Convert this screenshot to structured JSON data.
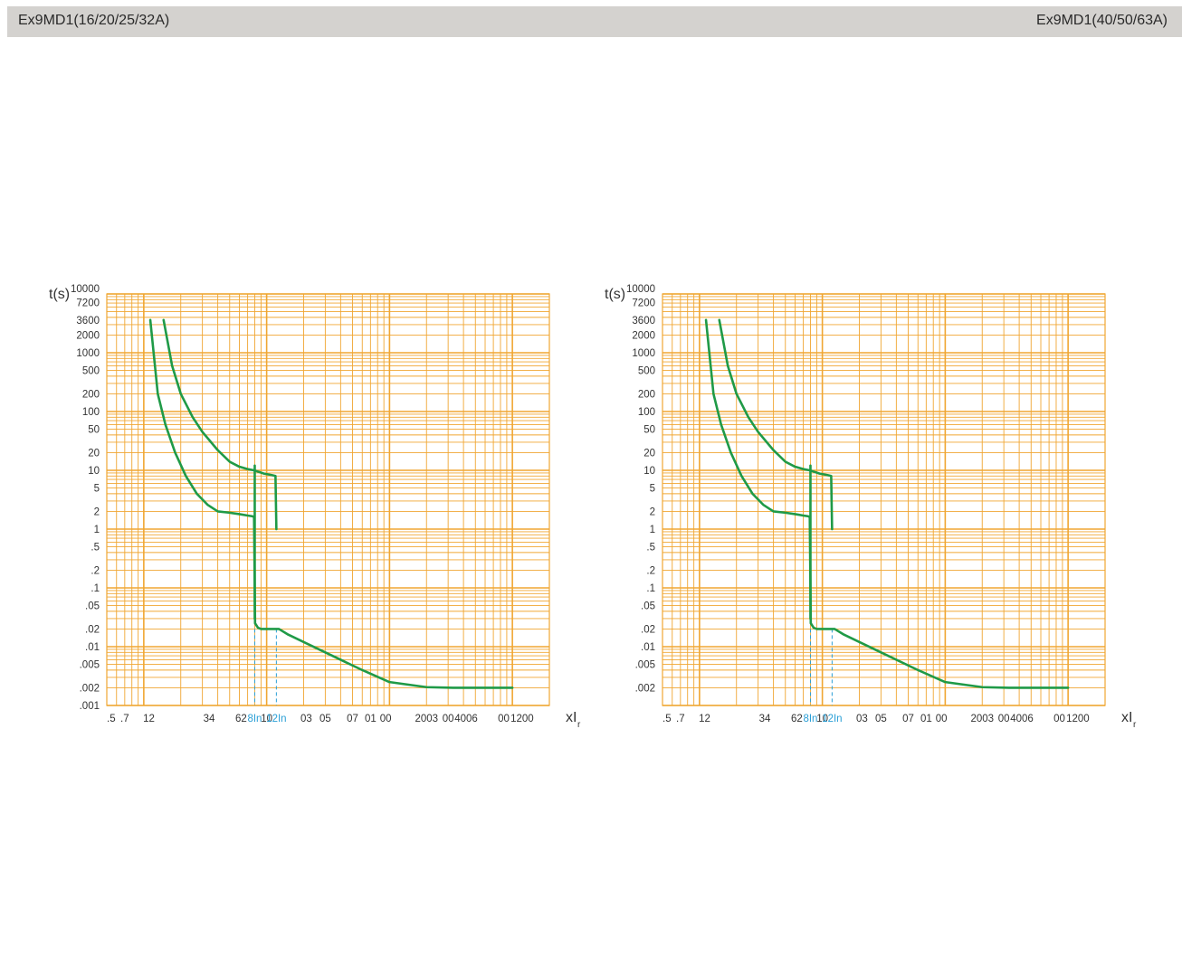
{
  "header": {
    "left_title": "Ex9MD1(16/20/25/32A)",
    "right_title": "Ex9MD1(40/50/63A)"
  },
  "colors": {
    "grid": "#f0a632",
    "curve": "#1f9a47",
    "marker": "#2a9fd6",
    "header_bg": "#d4d2cf"
  },
  "chart_data": [
    {
      "type": "line",
      "title": "",
      "xlabel": "xI",
      "xlabel_sub": "r",
      "ylabel": "t(s)",
      "x_scale": "log",
      "y_scale": "log",
      "xlim": [
        0.5,
        2000
      ],
      "ylim": [
        0.001,
        10000
      ],
      "grid": true,
      "y_ticks": [
        "10000",
        "7200",
        "3600",
        "2000",
        "1000",
        "500",
        "200",
        "100",
        "50",
        "20",
        "10",
        "5",
        "2",
        "1",
        ".5",
        ".2",
        ".1",
        ".05",
        ".02",
        ".01",
        ".005",
        ".002",
        ".001"
      ],
      "x_ticks": [
        ".5",
        ".7",
        "12",
        "34",
        "62",
        "8In",
        "10",
        "12In",
        "03",
        "05",
        "07",
        "01",
        "00",
        "2003",
        "00",
        "4006",
        "00",
        "1200"
      ],
      "x_ticks_highlight": [
        "8In",
        "12In"
      ],
      "markers": [
        8,
        12
      ],
      "series": [
        {
          "x": [
            1.13,
            1.3,
            1.5,
            1.8,
            2.2,
            2.7,
            3.3,
            4,
            5,
            6,
            7,
            7.7,
            7.9,
            8.05,
            8.5,
            9,
            10,
            11.6,
            11.85,
            12.05,
            12.6,
            15,
            30,
            60,
            100,
            200,
            330,
            400,
            1000
          ],
          "y": [
            3600,
            200,
            60,
            20,
            8,
            4,
            2.6,
            2,
            1.9,
            1.8,
            1.7,
            1.65,
            1.6,
            0.025,
            0.021,
            0.02,
            0.02,
            0.02,
            0.02,
            0.02,
            0.02,
            0.016,
            0.008,
            0.004,
            0.0025,
            0.00205,
            0.002,
            0.002,
            0.002
          ]
        },
        {
          "x": [
            1.45,
            1.7,
            2,
            2.5,
            3,
            4,
            5,
            6,
            7,
            7.9,
            8.5,
            9.5,
            11,
            11.8,
            12
          ],
          "y": [
            3600,
            600,
            200,
            80,
            45,
            22,
            14,
            11.5,
            10.5,
            10,
            9.5,
            8.8,
            8.3,
            8,
            1
          ]
        },
        {
          "x": [
            8,
            8
          ],
          "y": [
            12,
            0.03
          ]
        }
      ]
    },
    {
      "type": "line",
      "title": "",
      "xlabel": "xI",
      "xlabel_sub": "r",
      "ylabel": "t(s)",
      "x_scale": "log",
      "y_scale": "log",
      "xlim": [
        0.5,
        2000
      ],
      "ylim": [
        0.001,
        10000
      ],
      "grid": true,
      "y_ticks": [
        "10000",
        "7200",
        "3600",
        "2000",
        "1000",
        "500",
        "200",
        "100",
        "50",
        "20",
        "10",
        "5",
        "2",
        "1",
        ".5",
        ".2",
        ".1",
        ".05",
        ".02",
        ".01",
        ".005",
        ".002"
      ],
      "x_ticks": [
        ".5",
        ".7",
        "12",
        "34",
        "62",
        "8In",
        "10",
        "12In",
        "03",
        "05",
        "07",
        "01",
        "00",
        "2003",
        "00",
        "4006",
        "00",
        "1200"
      ],
      "x_ticks_highlight": [
        "8In",
        "12In"
      ],
      "markers": [
        8,
        12
      ],
      "series": [
        {
          "x": [
            1.13,
            1.3,
            1.5,
            1.8,
            2.2,
            2.7,
            3.3,
            4,
            5,
            6,
            7,
            7.7,
            7.9,
            8.05,
            8.5,
            9,
            10,
            11.6,
            11.85,
            12.05,
            12.6,
            15,
            30,
            60,
            100,
            200,
            330,
            400,
            1000
          ],
          "y": [
            3600,
            200,
            60,
            20,
            8,
            4,
            2.6,
            2,
            1.9,
            1.8,
            1.7,
            1.65,
            1.6,
            0.025,
            0.021,
            0.02,
            0.02,
            0.02,
            0.02,
            0.02,
            0.02,
            0.016,
            0.008,
            0.004,
            0.0025,
            0.00205,
            0.002,
            0.002,
            0.002
          ]
        },
        {
          "x": [
            1.45,
            1.7,
            2,
            2.5,
            3,
            4,
            5,
            6,
            7,
            7.9,
            8.5,
            9.5,
            11,
            11.8,
            12
          ],
          "y": [
            3600,
            600,
            200,
            80,
            45,
            22,
            14,
            11.5,
            10.5,
            10,
            9.5,
            8.8,
            8.3,
            8,
            1
          ]
        },
        {
          "x": [
            8,
            8
          ],
          "y": [
            12,
            0.03
          ]
        }
      ]
    }
  ]
}
